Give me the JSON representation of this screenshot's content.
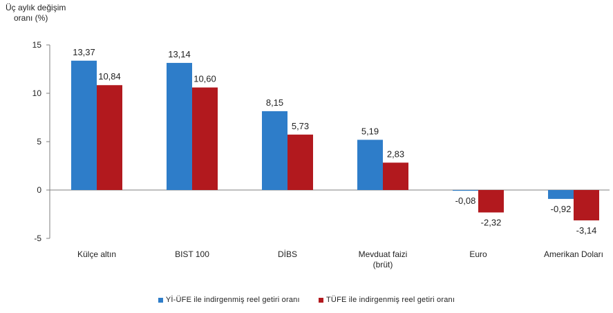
{
  "chart_data": {
    "type": "bar",
    "ylabel_lines": [
      "Üç aylık değişim",
      "oranı (%)"
    ],
    "ylim": [
      -5,
      15
    ],
    "yticks": [
      "15",
      "10",
      "5",
      "0",
      "-5"
    ],
    "ytick_values": [
      15,
      10,
      5,
      0,
      -5
    ],
    "categories": [
      [
        "Külçe altın"
      ],
      [
        "BIST 100"
      ],
      [
        "DİBS"
      ],
      [
        "Mevduat faizi",
        "(brüt)"
      ],
      [
        "Euro"
      ],
      [
        "Amerikan Doları"
      ]
    ],
    "series": [
      {
        "name": "Yİ-ÜFE ile indirgenmiş reel getiri oranı",
        "color": "#2e7dc9",
        "values": [
          13.37,
          13.14,
          8.15,
          5.19,
          -0.08,
          -0.92
        ],
        "labels": [
          "13,37",
          "13,14",
          "8,15",
          "5,19",
          "-0,08",
          "-0,92"
        ]
      },
      {
        "name": "TÜFE ile indirgenmiş reel getiri oranı",
        "color": "#b2191e",
        "values": [
          10.84,
          10.6,
          5.73,
          2.83,
          -2.32,
          -3.14
        ],
        "labels": [
          "10,84",
          "10,60",
          "5,73",
          "2,83",
          "-2,32",
          "-3,14"
        ]
      }
    ],
    "grid": false,
    "legend_position": "bottom"
  }
}
